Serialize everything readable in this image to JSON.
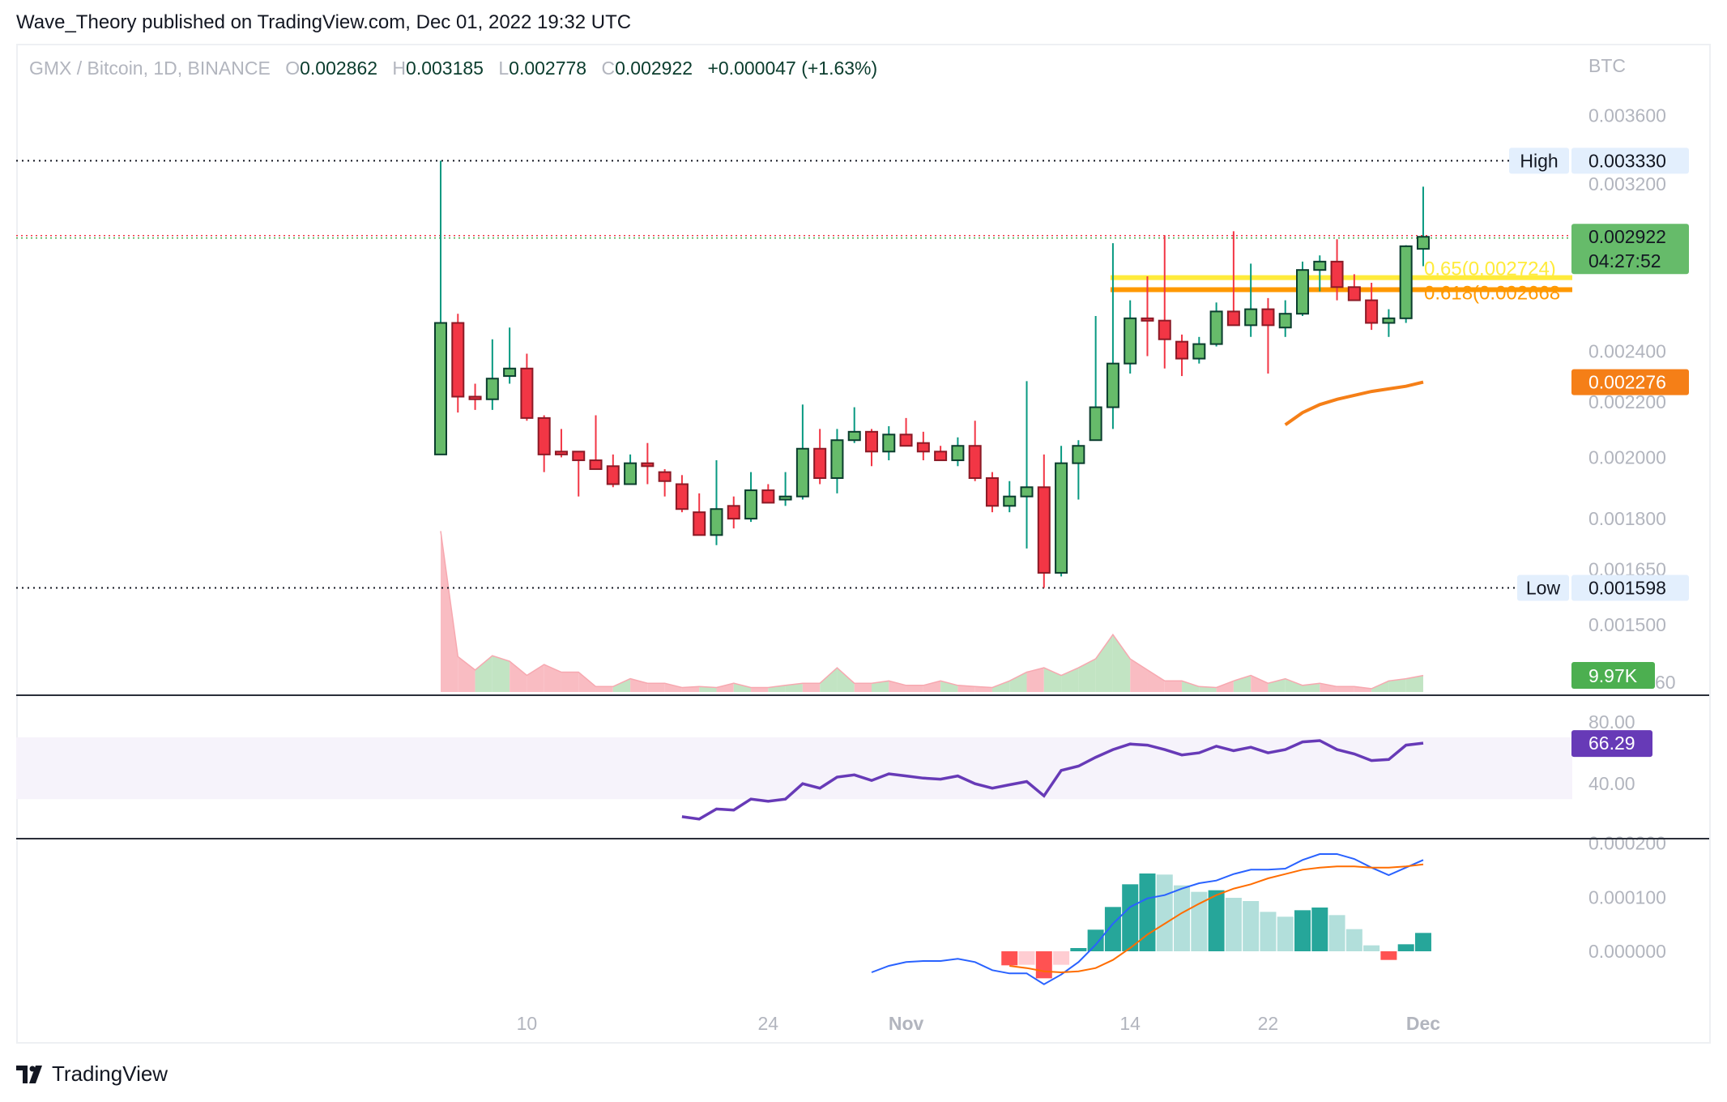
{
  "header": {
    "publisher": "Wave_Theory published on TradingView.com, Dec 01, 2022 19:32 UTC"
  },
  "legend": {
    "symbol": "GMX / Bitcoin, 1D, BINANCE",
    "o_label": "O",
    "open": "0.002862",
    "h_label": "H",
    "high": "0.003185",
    "l_label": "L",
    "low": "0.002778",
    "c_label": "C",
    "close": "0.002922",
    "change": "+0.000047 (+1.63%)"
  },
  "footer": {
    "logo_text": "TradingView"
  },
  "colors": {
    "up": "#66bb6a",
    "up_border": "#0b3d2e",
    "up_wick": "#089981",
    "down": "#f23645",
    "down_border": "#8b1a26",
    "ma": "#f57f17",
    "rsi": "#673ab7",
    "macd": "#2962ff",
    "signal": "#ff6d00",
    "fib_065": "#ffeb3b",
    "fib_0618": "#ff9800"
  },
  "chart_data": [
    {
      "type": "candlestick",
      "price_axis_label": "BTC",
      "scale": "log",
      "ylim": [
        0.0014,
        0.0038
      ],
      "y_ticks": [
        "0.003600",
        "0.003200",
        "0.002400",
        "0.002200",
        "0.002000",
        "0.001800",
        "0.001650",
        "0.001500"
      ],
      "x_ticks": [
        {
          "label": "10",
          "date": "2022-10-10"
        },
        {
          "label": "24",
          "date": "2022-10-24"
        },
        {
          "label": "Nov",
          "date": "2022-11-01"
        },
        {
          "label": "14",
          "date": "2022-11-14"
        },
        {
          "label": "22",
          "date": "2022-11-22"
        },
        {
          "label": "Dec",
          "date": "2022-12-01"
        }
      ],
      "dates": [
        "2022-10-05",
        "2022-10-06",
        "2022-10-07",
        "2022-10-08",
        "2022-10-09",
        "2022-10-10",
        "2022-10-11",
        "2022-10-12",
        "2022-10-13",
        "2022-10-14",
        "2022-10-15",
        "2022-10-16",
        "2022-10-17",
        "2022-10-18",
        "2022-10-19",
        "2022-10-20",
        "2022-10-21",
        "2022-10-22",
        "2022-10-23",
        "2022-10-24",
        "2022-10-25",
        "2022-10-26",
        "2022-10-27",
        "2022-10-28",
        "2022-10-29",
        "2022-10-30",
        "2022-10-31",
        "2022-11-01",
        "2022-11-02",
        "2022-11-03",
        "2022-11-04",
        "2022-11-05",
        "2022-11-06",
        "2022-11-07",
        "2022-11-08",
        "2022-11-09",
        "2022-11-10",
        "2022-11-11",
        "2022-11-12",
        "2022-11-13",
        "2022-11-14",
        "2022-11-15",
        "2022-11-16",
        "2022-11-17",
        "2022-11-18",
        "2022-11-19",
        "2022-11-20",
        "2022-11-21",
        "2022-11-22",
        "2022-11-23",
        "2022-11-24",
        "2022-11-25",
        "2022-11-26",
        "2022-11-27",
        "2022-11-28",
        "2022-11-29",
        "2022-11-30",
        "2022-12-01"
      ],
      "ohlc": [
        [
          0.00201,
          0.00333,
          0.00201,
          0.00252
        ],
        [
          0.00252,
          0.00256,
          0.00216,
          0.00222
        ],
        [
          0.00222,
          0.00227,
          0.00217,
          0.00221
        ],
        [
          0.00221,
          0.00245,
          0.00217,
          0.00229
        ],
        [
          0.0023,
          0.0025,
          0.00227,
          0.00233
        ],
        [
          0.00233,
          0.00239,
          0.00213,
          0.00214
        ],
        [
          0.00214,
          0.00215,
          0.00195,
          0.00201
        ],
        [
          0.00202,
          0.0021,
          0.002,
          0.00201
        ],
        [
          0.00202,
          0.00202,
          0.00187,
          0.00199
        ],
        [
          0.00199,
          0.00215,
          0.00196,
          0.00196
        ],
        [
          0.00197,
          0.00201,
          0.0019,
          0.00191
        ],
        [
          0.00191,
          0.00201,
          0.00191,
          0.00198
        ],
        [
          0.00198,
          0.00205,
          0.00191,
          0.00197
        ],
        [
          0.00195,
          0.00196,
          0.00187,
          0.00192
        ],
        [
          0.00191,
          0.00194,
          0.00182,
          0.00183
        ],
        [
          0.00182,
          0.00188,
          0.00175,
          0.00175
        ],
        [
          0.00175,
          0.00199,
          0.00172,
          0.00183
        ],
        [
          0.00184,
          0.00187,
          0.00177,
          0.0018
        ],
        [
          0.0018,
          0.00195,
          0.00179,
          0.00189
        ],
        [
          0.00189,
          0.00191,
          0.00185,
          0.00185
        ],
        [
          0.00186,
          0.00195,
          0.00184,
          0.00187
        ],
        [
          0.00187,
          0.00219,
          0.00186,
          0.00203
        ],
        [
          0.00203,
          0.0021,
          0.00191,
          0.00193
        ],
        [
          0.00193,
          0.0021,
          0.00188,
          0.00206
        ],
        [
          0.00206,
          0.00218,
          0.00205,
          0.00209
        ],
        [
          0.00209,
          0.0021,
          0.00197,
          0.00202
        ],
        [
          0.00202,
          0.00211,
          0.00199,
          0.00208
        ],
        [
          0.00208,
          0.00214,
          0.00204,
          0.00204
        ],
        [
          0.00205,
          0.00209,
          0.00199,
          0.00202
        ],
        [
          0.00202,
          0.00204,
          0.00199,
          0.00199
        ],
        [
          0.00199,
          0.00207,
          0.00197,
          0.00204
        ],
        [
          0.00204,
          0.00213,
          0.00192,
          0.00193
        ],
        [
          0.00193,
          0.00195,
          0.00182,
          0.00184
        ],
        [
          0.00184,
          0.00192,
          0.00182,
          0.00187
        ],
        [
          0.00187,
          0.00228,
          0.00171,
          0.0019
        ],
        [
          0.0019,
          0.00201,
          0.001598,
          0.00164
        ],
        [
          0.00164,
          0.00204,
          0.00163,
          0.00198
        ],
        [
          0.00198,
          0.00206,
          0.00186,
          0.00204
        ],
        [
          0.00206,
          0.00255,
          0.00206,
          0.00218
        ],
        [
          0.00218,
          0.00289,
          0.0021,
          0.00235
        ],
        [
          0.00235,
          0.00262,
          0.00231,
          0.00254
        ],
        [
          0.00254,
          0.00273,
          0.00238,
          0.00253
        ],
        [
          0.00253,
          0.00293,
          0.00233,
          0.00245
        ],
        [
          0.00244,
          0.00247,
          0.0023,
          0.00237
        ],
        [
          0.00237,
          0.00246,
          0.00235,
          0.00243
        ],
        [
          0.00243,
          0.00261,
          0.00242,
          0.00257
        ],
        [
          0.00257,
          0.00295,
          0.00251,
          0.00251
        ],
        [
          0.00251,
          0.00279,
          0.00246,
          0.00258
        ],
        [
          0.00258,
          0.00263,
          0.00231,
          0.00251
        ],
        [
          0.0025,
          0.00262,
          0.00246,
          0.00256
        ],
        [
          0.00256,
          0.0028,
          0.00255,
          0.00276
        ],
        [
          0.00276,
          0.00283,
          0.00266,
          0.0028
        ],
        [
          0.0028,
          0.00291,
          0.00262,
          0.00268
        ],
        [
          0.00268,
          0.00274,
          0.00262,
          0.00262
        ],
        [
          0.00262,
          0.0027,
          0.00249,
          0.00252
        ],
        [
          0.00252,
          0.00258,
          0.00246,
          0.00254
        ],
        [
          0.00254,
          0.00288,
          0.00252,
          0.002875
        ],
        [
          0.002862,
          0.003185,
          0.002778,
          0.002922
        ]
      ],
      "high_marker": {
        "label": "High",
        "value": "0.003330"
      },
      "low_marker": {
        "label": "Low",
        "value": "0.001598"
      },
      "last_price": {
        "value": "0.002922",
        "countdown": "04:27:52"
      },
      "moving_average": {
        "start": "2022-11-23",
        "values": [
          0.002115,
          0.00216,
          0.00219,
          0.00221,
          0.002225,
          0.00224,
          0.00225,
          0.00226,
          0.002276
        ],
        "last_label": "0.002276"
      },
      "fib_levels": [
        {
          "label": "0.65(0.002724)",
          "value": 0.002724,
          "start": "2022-11-13"
        },
        {
          "label": "0.618(0.002668",
          "value": 0.002668,
          "start": "2022-11-13"
        }
      ]
    },
    {
      "type": "area",
      "name_tag": "9.97K",
      "axis_label_partial": "60",
      "unit": "K",
      "values": [
        97.1,
        21.3,
        13.3,
        21.9,
        18.6,
        10.0,
        16.6,
        12.0,
        12.0,
        3.3,
        3.3,
        8.0,
        5.3,
        5.3,
        2.7,
        3.3,
        2.7,
        5.3,
        2.7,
        2.7,
        4.0,
        5.3,
        5.3,
        14.6,
        5.3,
        5.3,
        6.7,
        4.0,
        4.0,
        6.7,
        4.0,
        3.3,
        2.7,
        6.7,
        12.0,
        14.6,
        10.0,
        14.6,
        20.0,
        34.6,
        20.0,
        13.3,
        6.7,
        6.7,
        3.3,
        2.7,
        6.7,
        10.0,
        5.3,
        8.0,
        4.0,
        5.3,
        3.3,
        3.3,
        2.0,
        6.7,
        8.0,
        9.97
      ]
    },
    {
      "type": "line",
      "indicator": "RSI",
      "y_ticks": [
        "80.00",
        "40.00"
      ],
      "band": [
        30,
        70
      ],
      "start": "2022-10-19",
      "values": [
        18.6,
        17.1,
        23.6,
        22.9,
        30.0,
        28.6,
        30.0,
        40.0,
        37.1,
        44.3,
        45.7,
        42.1,
        46.4,
        45.0,
        43.6,
        42.9,
        45.0,
        40.0,
        37.1,
        39.3,
        41.4,
        32.1,
        48.6,
        51.4,
        57.1,
        62.1,
        65.7,
        65.0,
        62.1,
        58.6,
        60.0,
        64.3,
        61.4,
        63.6,
        60.0,
        62.1,
        67.1,
        67.9,
        62.1,
        59.3,
        55.0,
        55.7,
        65.0,
        66.29
      ],
      "last_label": "66.29"
    },
    {
      "type": "macd",
      "y_ticks": [
        "0.000200",
        "0.000100",
        "0.000000"
      ],
      "macd": {
        "start": "2022-10-30",
        "values": [
          -3.9e-05,
          -2.7e-05,
          -2e-05,
          -1.8e-05,
          -1.8e-05,
          -1.4e-05,
          -2e-05,
          -3.5e-05,
          -4.1e-05,
          -4.1e-05,
          -6.1e-05,
          -4.3e-05,
          -2e-05,
          1.2e-05,
          5.1e-05,
          8.2e-05,
          9.8e-05,
          0.000104,
          0.000116,
          0.000126,
          0.000131,
          0.000143,
          0.000151,
          0.000151,
          0.000153,
          0.000169,
          0.00018,
          0.00018,
          0.000171,
          0.000155,
          0.000141,
          0.000155,
          0.000169
        ]
      },
      "signal": {
        "start": "2022-11-07",
        "values": [
          -2.7e-05,
          -3.1e-05,
          -3.7e-05,
          -3.9e-05,
          -3.7e-05,
          -3.1e-05,
          -1.6e-05,
          6e-06,
          3.1e-05,
          5.1e-05,
          7.1e-05,
          8.8e-05,
          0.000104,
          0.000116,
          0.000124,
          0.000135,
          0.000143,
          0.000151,
          0.000155,
          0.000157,
          0.000157,
          0.000155,
          0.000155,
          0.000157,
          0.000161
        ]
      },
      "histogram": {
        "start": "2022-11-07",
        "values": [
          -2.6e-05,
          -2.5e-05,
          -5e-05,
          -2.5e-05,
          6e-06,
          4e-05,
          8.2e-05,
          0.000124,
          0.000144,
          0.000142,
          0.000122,
          0.00011,
          0.000113,
          9.9e-05,
          9.3e-05,
          7.3e-05,
          6.4e-05,
          7.6e-05,
          8.1e-05,
          6.7e-05,
          4.1e-05,
          1.1e-05,
          -1.6e-05,
          1.3e-05,
          3.4e-05
        ]
      }
    }
  ]
}
